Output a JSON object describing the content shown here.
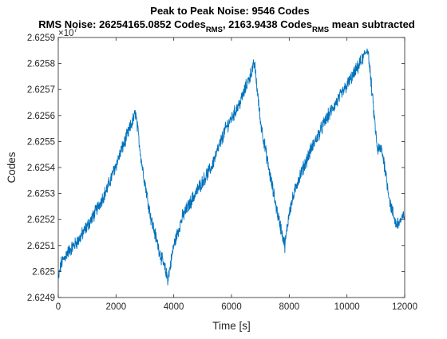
{
  "chart_data": {
    "type": "line",
    "title_line1": "Peak to Peak Noise: 9546 Codes",
    "title_line2": {
      "part1": "RMS Noise: 26254165.0852 Codes",
      "sub1": "RMS",
      "part2": ", 2163.9438 Codes",
      "sub2": "RMS",
      "part3": " mean subtracted"
    },
    "xlabel": "Time [s]",
    "ylabel": "Codes",
    "y_exponent_base": "×10",
    "y_exponent_power": "7",
    "xlim": [
      0,
      12000
    ],
    "ylim": [
      26249000,
      26259000
    ],
    "x_ticks": [
      0,
      2000,
      4000,
      6000,
      8000,
      10000,
      12000
    ],
    "y_tick_labels": [
      "2.6249",
      "2.625",
      "2.6251",
      "2.6252",
      "2.6253",
      "2.6254",
      "2.6255",
      "2.6256",
      "2.6257",
      "2.6258",
      "2.6259"
    ],
    "y_tick_values": [
      26249000,
      26250000,
      26251000,
      26252000,
      26253000,
      26254000,
      26255000,
      26256000,
      26257000,
      26258000,
      26259000
    ],
    "grid": false,
    "box": true,
    "line_color": "#0072BD",
    "noise_amplitude_codes": 220,
    "series": [
      {
        "points": [
          [
            0,
            26249700
          ],
          [
            100,
            26250300
          ],
          [
            300,
            26250700
          ],
          [
            700,
            26251200
          ],
          [
            1200,
            26252100
          ],
          [
            1700,
            26253200
          ],
          [
            2200,
            26254700
          ],
          [
            2550,
            26255700
          ],
          [
            2680,
            26256100
          ],
          [
            2900,
            26254100
          ],
          [
            3200,
            26252100
          ],
          [
            3500,
            26250800
          ],
          [
            3800,
            26249700
          ],
          [
            4000,
            26251000
          ],
          [
            4300,
            26252100
          ],
          [
            4800,
            26253100
          ],
          [
            5300,
            26254000
          ],
          [
            5800,
            26255500
          ],
          [
            6300,
            26256500
          ],
          [
            6700,
            26257700
          ],
          [
            6800,
            26258000
          ],
          [
            7000,
            26255800
          ],
          [
            7300,
            26253900
          ],
          [
            7600,
            26252200
          ],
          [
            7850,
            26251000
          ],
          [
            8000,
            26252300
          ],
          [
            8300,
            26253500
          ],
          [
            8800,
            26254800
          ],
          [
            9300,
            26255900
          ],
          [
            9800,
            26256800
          ],
          [
            10300,
            26257700
          ],
          [
            10600,
            26258300
          ],
          [
            10720,
            26258600
          ],
          [
            10900,
            26256500
          ],
          [
            11050,
            26254700
          ],
          [
            11200,
            26254700
          ],
          [
            11300,
            26254100
          ],
          [
            11500,
            26252600
          ],
          [
            11700,
            26251800
          ],
          [
            11900,
            26252000
          ],
          [
            12000,
            26252200
          ]
        ]
      }
    ]
  }
}
